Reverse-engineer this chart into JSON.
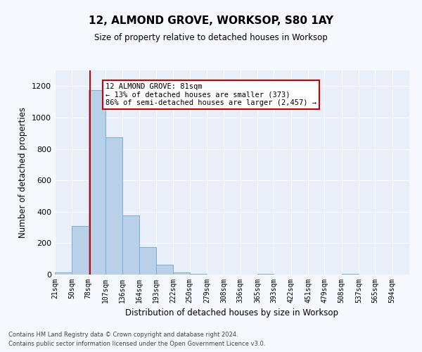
{
  "title": "12, ALMOND GROVE, WORKSOP, S80 1AY",
  "subtitle": "Size of property relative to detached houses in Worksop",
  "xlabel": "Distribution of detached houses by size in Worksop",
  "ylabel": "Number of detached properties",
  "footer1": "Contains HM Land Registry data © Crown copyright and database right 2024.",
  "footer2": "Contains public sector information licensed under the Open Government Licence v3.0.",
  "annotation_title": "12 ALMOND GROVE: 81sqm",
  "annotation_line1": "← 13% of detached houses are smaller (373)",
  "annotation_line2": "86% of semi-detached houses are larger (2,457) →",
  "bar_color": "#b8d0e8",
  "bar_edge_color": "#7aaed4",
  "red_line_x": 81,
  "categories": [
    "21sqm",
    "50sqm",
    "78sqm",
    "107sqm",
    "136sqm",
    "164sqm",
    "193sqm",
    "222sqm",
    "250sqm",
    "279sqm",
    "308sqm",
    "336sqm",
    "365sqm",
    "393sqm",
    "422sqm",
    "451sqm",
    "479sqm",
    "508sqm",
    "537sqm",
    "565sqm",
    "594sqm"
  ],
  "bin_edges": [
    21,
    50,
    78,
    107,
    136,
    164,
    193,
    222,
    250,
    279,
    308,
    336,
    365,
    393,
    422,
    451,
    479,
    508,
    537,
    565,
    594,
    623
  ],
  "values": [
    15,
    310,
    1175,
    875,
    375,
    175,
    65,
    15,
    5,
    0,
    0,
    0,
    5,
    0,
    0,
    0,
    0,
    5,
    0,
    0,
    0
  ],
  "ylim": [
    0,
    1300
  ],
  "yticks": [
    0,
    200,
    400,
    600,
    800,
    1000,
    1200
  ],
  "bg_color": "#e8eff8",
  "fig_bg_color": "#f5f8fc",
  "grid_color": "#ffffff",
  "annotation_box_color": "#ffffff",
  "annotation_border_color": "#cc0000",
  "red_line_color": "#cc0000"
}
